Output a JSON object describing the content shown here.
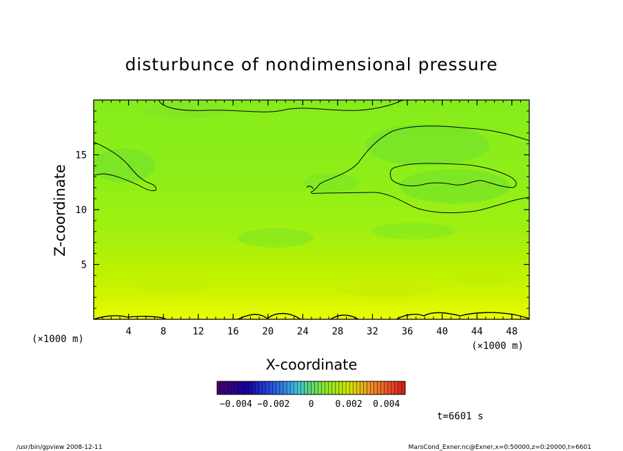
{
  "chart_data": {
    "type": "heatmap",
    "title": "disturbunce of nondimensional pressure",
    "xlabel": "X-coordinate",
    "ylabel": "Z-coordinate",
    "x_unit": "(×1000 m)",
    "y_unit": "(×1000 m)",
    "xlim": [
      0,
      50
    ],
    "ylim": [
      0,
      20
    ],
    "x_ticks": [
      4,
      8,
      12,
      16,
      20,
      24,
      28,
      32,
      36,
      40,
      44,
      48
    ],
    "y_ticks": [
      5,
      10,
      15
    ],
    "colorbar": {
      "range": [
        -0.005,
        0.005
      ],
      "ticks": [
        -0.004,
        -0.002,
        0,
        0.002,
        0.004
      ],
      "tick_labels": [
        "−0.004",
        "−0.002",
        "0",
        "0.002",
        "0.004"
      ],
      "colormap": "rainbow (purple-blue-cyan-green-yellow-red)"
    },
    "time_label": "t=6601 s",
    "dominant_colors": {
      "upper_field": "#88ee22",
      "lower_field": "#ccf000",
      "surface": "#eeff00"
    }
  },
  "footer": {
    "left": "/usr/bin/gpview   2008-12-11",
    "right": "MarsCond_Exner.nc@Exner,x=0:50000,z=0:20000,t=6601"
  }
}
